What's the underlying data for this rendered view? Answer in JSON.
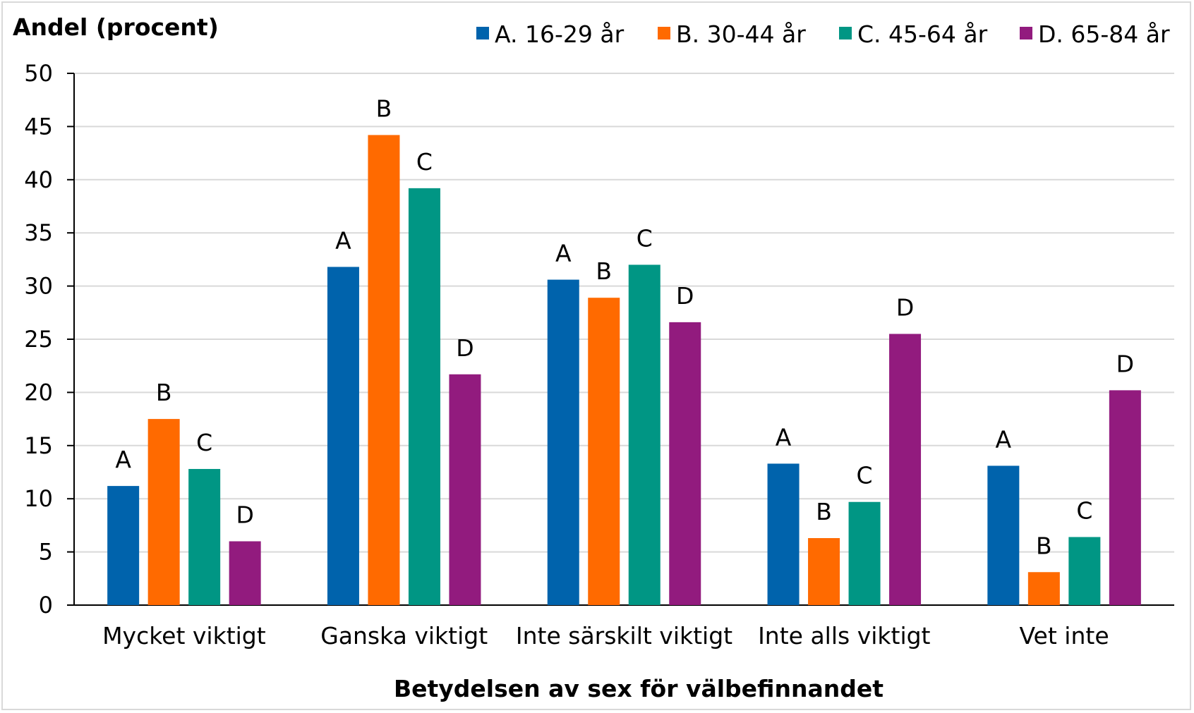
{
  "chart_data": {
    "type": "bar",
    "ylabel": "Andel (procent)",
    "xlabel": "Betydelsen av sex för välbefinnandet",
    "ylim": [
      0,
      50
    ],
    "yticks": [
      0,
      5,
      10,
      15,
      20,
      25,
      30,
      35,
      40,
      45,
      50
    ],
    "grid": true,
    "legend_position": "top-right",
    "categories": [
      "Mycket viktigt",
      "Ganska viktigt",
      "Inte särskilt viktigt",
      "Inte alls viktigt",
      "Vet inte"
    ],
    "series": [
      {
        "name": "A. 16-29 år",
        "short": "A",
        "color": "#0063ac",
        "values": [
          11.2,
          31.8,
          30.6,
          13.3,
          13.1
        ]
      },
      {
        "name": "B. 30-44 år",
        "short": "B",
        "color": "#ff6a00",
        "values": [
          17.5,
          44.2,
          28.9,
          6.3,
          3.1
        ]
      },
      {
        "name": "C. 45-64 år",
        "short": "C",
        "color": "#009684",
        "values": [
          12.8,
          39.2,
          32.0,
          9.7,
          6.4
        ]
      },
      {
        "name": "D. 65-84 år",
        "short": "D",
        "color": "#921b7e",
        "values": [
          6.0,
          21.7,
          26.6,
          25.5,
          20.2
        ]
      }
    ]
  }
}
